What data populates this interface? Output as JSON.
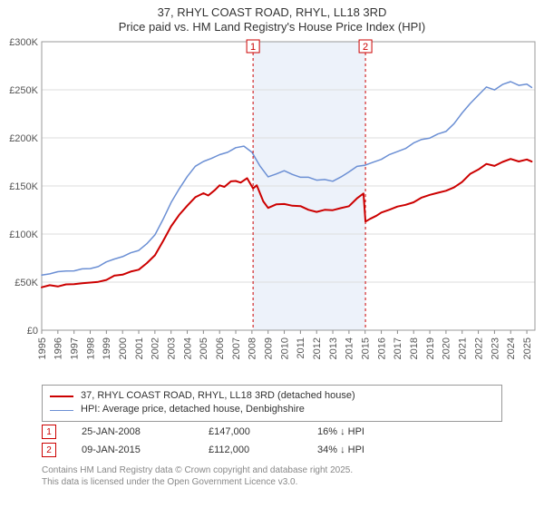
{
  "title_line1": "37, RHYL COAST ROAD, RHYL, LL18 3RD",
  "title_line2": "Price paid vs. HM Land Registry's House Price Index (HPI)",
  "chart": {
    "type": "line",
    "background_color": "#ffffff",
    "plot_border_color": "#999999",
    "grid_color": "#dddddd",
    "band_fill": "#edf2fa",
    "x": {
      "min": 1995,
      "max": 2025.5,
      "ticks": [
        1995,
        1996,
        1997,
        1998,
        1999,
        2000,
        2001,
        2002,
        2003,
        2004,
        2005,
        2006,
        2007,
        2008,
        2009,
        2010,
        2011,
        2012,
        2013,
        2014,
        2015,
        2016,
        2017,
        2018,
        2019,
        2020,
        2021,
        2022,
        2023,
        2024,
        2025
      ]
    },
    "y": {
      "min": 0,
      "max": 300000,
      "tick_step": 50000,
      "ticks": [
        0,
        50000,
        100000,
        150000,
        200000,
        250000,
        300000
      ],
      "tick_labels": [
        "£0",
        "£50K",
        "£100K",
        "£150K",
        "£200K",
        "£250K",
        "£300K"
      ]
    },
    "bands": [
      {
        "from": 2008.07,
        "to": 2015.02
      }
    ],
    "series": [
      {
        "id": "price_paid",
        "label": "37, RHYL COAST ROAD, RHYL, LL18 3RD (detached house)",
        "color": "#cc0000",
        "line_width": 2,
        "points": [
          [
            1995.0,
            45000
          ],
          [
            1995.5,
            46000
          ],
          [
            1996.0,
            46000
          ],
          [
            1996.5,
            47000
          ],
          [
            1997.0,
            47000
          ],
          [
            1997.5,
            48000
          ],
          [
            1998.0,
            49000
          ],
          [
            1998.5,
            51000
          ],
          [
            1999.0,
            53000
          ],
          [
            1999.5,
            56000
          ],
          [
            2000.0,
            58000
          ],
          [
            2000.5,
            61000
          ],
          [
            2001.0,
            64000
          ],
          [
            2001.5,
            70000
          ],
          [
            2002.0,
            78000
          ],
          [
            2002.5,
            92000
          ],
          [
            2003.0,
            108000
          ],
          [
            2003.5,
            120000
          ],
          [
            2004.0,
            130000
          ],
          [
            2004.5,
            138000
          ],
          [
            2005.0,
            142000
          ],
          [
            2005.3,
            140000
          ],
          [
            2005.7,
            146000
          ],
          [
            2006.0,
            150000
          ],
          [
            2006.3,
            148000
          ],
          [
            2006.7,
            154000
          ],
          [
            2007.0,
            156000
          ],
          [
            2007.3,
            153000
          ],
          [
            2007.7,
            158000
          ],
          [
            2008.07,
            147000
          ],
          [
            2008.3,
            150000
          ],
          [
            2008.7,
            135000
          ],
          [
            2009.0,
            128000
          ],
          [
            2009.5,
            130000
          ],
          [
            2010.0,
            132000
          ],
          [
            2010.5,
            130000
          ],
          [
            2011.0,
            128000
          ],
          [
            2011.5,
            126000
          ],
          [
            2012.0,
            124000
          ],
          [
            2012.5,
            125000
          ],
          [
            2013.0,
            124000
          ],
          [
            2013.5,
            127000
          ],
          [
            2014.0,
            130000
          ],
          [
            2014.5,
            138000
          ],
          [
            2014.9,
            142000
          ],
          [
            2015.02,
            112000
          ],
          [
            2015.3,
            115000
          ],
          [
            2015.7,
            119000
          ],
          [
            2016.0,
            122000
          ],
          [
            2016.5,
            126000
          ],
          [
            2017.0,
            128000
          ],
          [
            2017.5,
            130000
          ],
          [
            2018.0,
            134000
          ],
          [
            2018.5,
            138000
          ],
          [
            2019.0,
            140000
          ],
          [
            2019.5,
            142000
          ],
          [
            2020.0,
            144000
          ],
          [
            2020.5,
            148000
          ],
          [
            2021.0,
            155000
          ],
          [
            2021.5,
            162000
          ],
          [
            2022.0,
            168000
          ],
          [
            2022.5,
            172000
          ],
          [
            2023.0,
            170000
          ],
          [
            2023.5,
            175000
          ],
          [
            2024.0,
            178000
          ],
          [
            2024.5,
            176000
          ],
          [
            2025.0,
            178000
          ],
          [
            2025.3,
            176000
          ]
        ]
      },
      {
        "id": "hpi",
        "label": "HPI: Average price, detached house, Denbighshire",
        "color": "#6b8fd4",
        "line_width": 1.5,
        "points": [
          [
            1995.0,
            58000
          ],
          [
            1995.5,
            59000
          ],
          [
            1996.0,
            60000
          ],
          [
            1996.5,
            61000
          ],
          [
            1997.0,
            62000
          ],
          [
            1997.5,
            63000
          ],
          [
            1998.0,
            65000
          ],
          [
            1998.5,
            67000
          ],
          [
            1999.0,
            70000
          ],
          [
            1999.5,
            73000
          ],
          [
            2000.0,
            76000
          ],
          [
            2000.5,
            80000
          ],
          [
            2001.0,
            84000
          ],
          [
            2001.5,
            90000
          ],
          [
            2002.0,
            100000
          ],
          [
            2002.5,
            115000
          ],
          [
            2003.0,
            132000
          ],
          [
            2003.5,
            148000
          ],
          [
            2004.0,
            160000
          ],
          [
            2004.5,
            170000
          ],
          [
            2005.0,
            176000
          ],
          [
            2005.5,
            178000
          ],
          [
            2006.0,
            182000
          ],
          [
            2006.5,
            186000
          ],
          [
            2007.0,
            190000
          ],
          [
            2007.5,
            192000
          ],
          [
            2008.0,
            185000
          ],
          [
            2008.5,
            170000
          ],
          [
            2009.0,
            160000
          ],
          [
            2009.5,
            162000
          ],
          [
            2010.0,
            165000
          ],
          [
            2010.5,
            163000
          ],
          [
            2011.0,
            160000
          ],
          [
            2011.5,
            158000
          ],
          [
            2012.0,
            156000
          ],
          [
            2012.5,
            157000
          ],
          [
            2013.0,
            156000
          ],
          [
            2013.5,
            160000
          ],
          [
            2014.0,
            165000
          ],
          [
            2014.5,
            170000
          ],
          [
            2015.0,
            172000
          ],
          [
            2015.5,
            175000
          ],
          [
            2016.0,
            178000
          ],
          [
            2016.5,
            182000
          ],
          [
            2017.0,
            186000
          ],
          [
            2017.5,
            190000
          ],
          [
            2018.0,
            195000
          ],
          [
            2018.5,
            198000
          ],
          [
            2019.0,
            200000
          ],
          [
            2019.5,
            203000
          ],
          [
            2020.0,
            206000
          ],
          [
            2020.5,
            215000
          ],
          [
            2021.0,
            225000
          ],
          [
            2021.5,
            235000
          ],
          [
            2022.0,
            245000
          ],
          [
            2022.5,
            252000
          ],
          [
            2023.0,
            250000
          ],
          [
            2023.5,
            255000
          ],
          [
            2024.0,
            258000
          ],
          [
            2024.5,
            254000
          ],
          [
            2025.0,
            255000
          ],
          [
            2025.3,
            252000
          ]
        ]
      }
    ],
    "markers": [
      {
        "n": "1",
        "x": 2008.07,
        "date": "25-JAN-2008",
        "price": "£147,000",
        "delta": "16% ↓ HPI"
      },
      {
        "n": "2",
        "x": 2015.02,
        "date": "09-JAN-2015",
        "price": "£112,000",
        "delta": "34% ↓ HPI"
      }
    ],
    "marker_box_color": "#cc0000",
    "label_fontsize": 11
  },
  "legend": {
    "rows": [
      {
        "color": "#cc0000",
        "width": 2,
        "label": "37, RHYL COAST ROAD, RHYL, LL18 3RD (detached house)"
      },
      {
        "color": "#6b8fd4",
        "width": 1.5,
        "label": "HPI: Average price, detached house, Denbighshire"
      }
    ]
  },
  "footer_line1": "Contains HM Land Registry data © Crown copyright and database right 2025.",
  "footer_line2": "This data is licensed under the Open Government Licence v3.0."
}
